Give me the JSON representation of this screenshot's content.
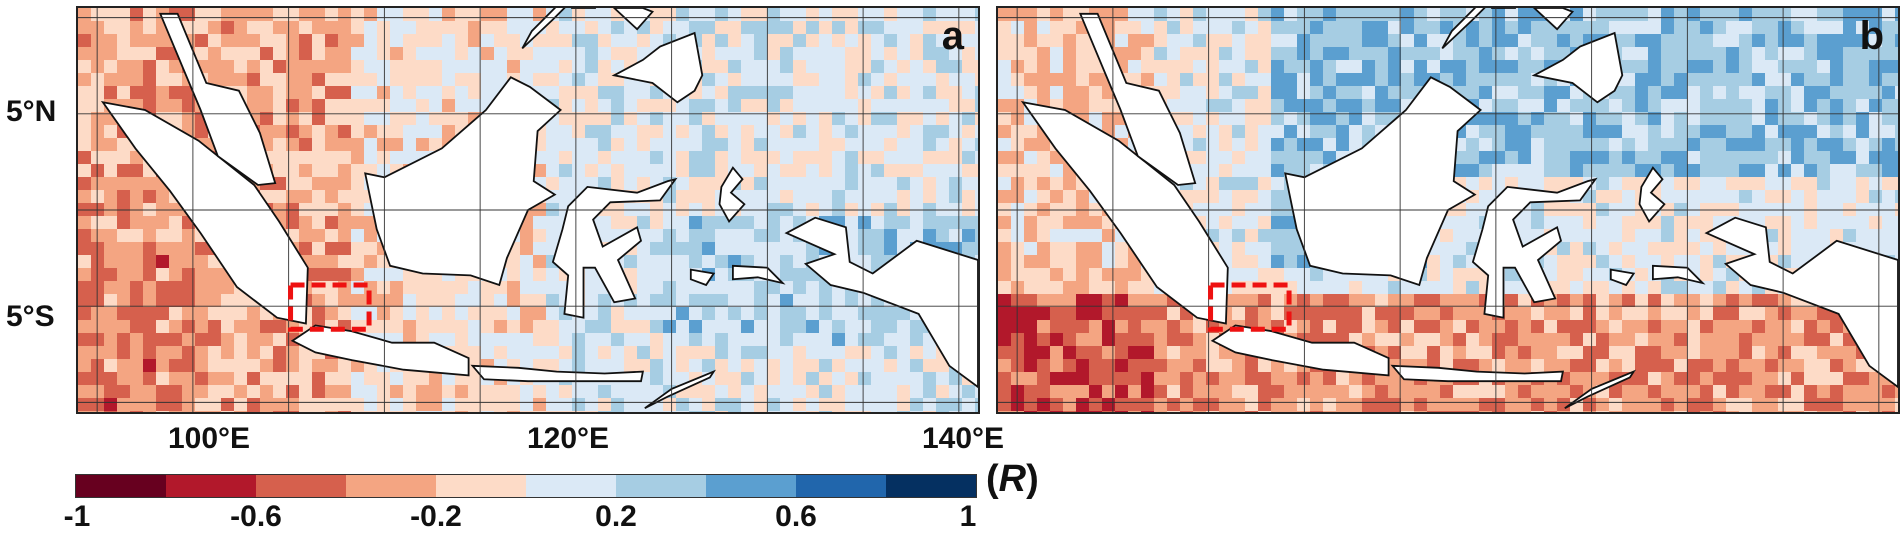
{
  "panels": [
    {
      "id": "a",
      "label": "a"
    },
    {
      "id": "b",
      "label": "b"
    }
  ],
  "lat_labels": [
    "5°N",
    "5°S"
  ],
  "lon_labels": [
    "100°E",
    "120°E",
    "140°E"
  ],
  "colorbar": {
    "quantity_open": "(",
    "quantity_symbol": "R",
    "quantity_close": ")",
    "ticks": [
      "-1",
      "-0.6",
      "-0.2",
      "0.2",
      "0.6",
      "1"
    ],
    "colors": [
      "#67001f",
      "#b2182b",
      "#d6604d",
      "#f4a582",
      "#fddbc7",
      "#dbe9f6",
      "#a6cde3",
      "#5b9fd0",
      "#2166ac",
      "#053061"
    ]
  },
  "region_box_color": "#ee1111",
  "land_color": "#ffffff",
  "ocean_base_color": "#f4dccf"
}
